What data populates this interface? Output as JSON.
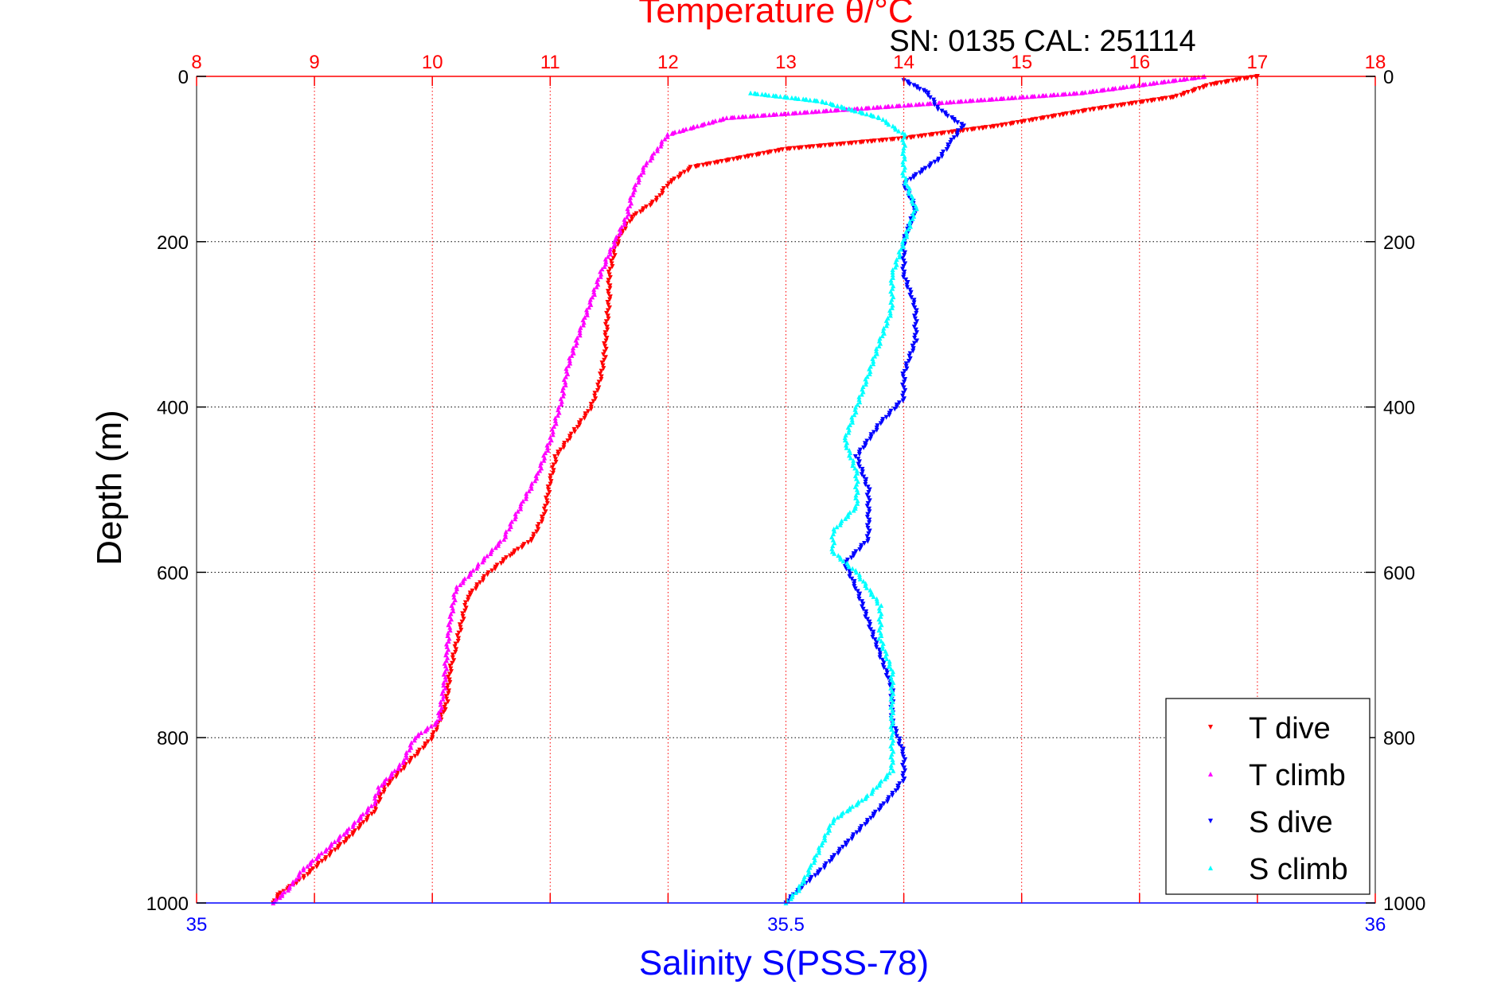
{
  "chart_data": {
    "type": "scatter",
    "title_top": "Temperature θ/°C",
    "subtitle": "SN: 0135  CAL: 251114",
    "xlabel_bottom": "Salinity S(PSS-78)",
    "ylabel": "Depth (m)",
    "x_top": {
      "range": [
        8,
        18
      ],
      "ticks": [
        "8",
        "9",
        "10",
        "11",
        "12",
        "13",
        "14",
        "15",
        "16",
        "17",
        "18"
      ],
      "color": "#ff0000"
    },
    "x_bottom": {
      "range": [
        35,
        36
      ],
      "ticks": [
        "35",
        "35.5",
        "36"
      ],
      "color": "#0000ff"
    },
    "y": {
      "range": [
        0,
        1000
      ],
      "inverted": true,
      "ticks": [
        "0",
        "200",
        "400",
        "600",
        "800",
        "1000"
      ]
    },
    "grid": true,
    "legend_position": "bottom-right",
    "series": [
      {
        "name": "T dive",
        "color": "#ff0000",
        "marker": "down-triangle",
        "axis": "top",
        "points": [
          [
            17.0,
            0
          ],
          [
            16.6,
            10
          ],
          [
            16.3,
            25
          ],
          [
            15.6,
            40
          ],
          [
            14.8,
            60
          ],
          [
            14.0,
            75
          ],
          [
            13.0,
            88
          ],
          [
            12.2,
            110
          ],
          [
            12.0,
            130
          ],
          [
            11.9,
            150
          ],
          [
            11.7,
            170
          ],
          [
            11.6,
            190
          ],
          [
            11.55,
            210
          ],
          [
            11.5,
            240
          ],
          [
            11.5,
            270
          ],
          [
            11.48,
            300
          ],
          [
            11.46,
            340
          ],
          [
            11.42,
            370
          ],
          [
            11.35,
            400
          ],
          [
            11.2,
            430
          ],
          [
            11.05,
            460
          ],
          [
            11.0,
            490
          ],
          [
            10.95,
            530
          ],
          [
            10.85,
            560
          ],
          [
            10.65,
            580
          ],
          [
            10.45,
            605
          ],
          [
            10.3,
            630
          ],
          [
            10.25,
            660
          ],
          [
            10.2,
            690
          ],
          [
            10.15,
            720
          ],
          [
            10.12,
            760
          ],
          [
            10.0,
            800
          ],
          [
            9.8,
            830
          ],
          [
            9.6,
            860
          ],
          [
            9.5,
            890
          ],
          [
            9.3,
            920
          ],
          [
            9.1,
            945
          ],
          [
            8.9,
            970
          ],
          [
            8.7,
            990
          ],
          [
            8.65,
            1000
          ]
        ]
      },
      {
        "name": "T climb",
        "color": "#ff00ff",
        "marker": "up-triangle",
        "axis": "top",
        "points": [
          [
            16.55,
            0
          ],
          [
            15.5,
            20
          ],
          [
            14.5,
            30
          ],
          [
            13.5,
            40
          ],
          [
            12.5,
            50
          ],
          [
            12.0,
            70
          ],
          [
            11.9,
            90
          ],
          [
            11.8,
            110
          ],
          [
            11.7,
            140
          ],
          [
            11.65,
            170
          ],
          [
            11.55,
            200
          ],
          [
            11.45,
            230
          ],
          [
            11.35,
            270
          ],
          [
            11.25,
            310
          ],
          [
            11.15,
            350
          ],
          [
            11.1,
            390
          ],
          [
            11.0,
            440
          ],
          [
            10.9,
            480
          ],
          [
            10.75,
            520
          ],
          [
            10.6,
            560
          ],
          [
            10.4,
            590
          ],
          [
            10.2,
            620
          ],
          [
            10.15,
            660
          ],
          [
            10.12,
            700
          ],
          [
            10.1,
            740
          ],
          [
            10.05,
            780
          ],
          [
            9.85,
            800
          ],
          [
            9.75,
            830
          ],
          [
            9.55,
            860
          ],
          [
            9.5,
            880
          ],
          [
            9.3,
            910
          ],
          [
            9.1,
            935
          ],
          [
            8.9,
            960
          ],
          [
            8.8,
            980
          ],
          [
            8.65,
            1000
          ]
        ]
      },
      {
        "name": "S dive",
        "color": "#0000ff",
        "marker": "down-triangle",
        "axis": "bottom",
        "points": [
          [
            35.6,
            5
          ],
          [
            35.62,
            20
          ],
          [
            35.63,
            40
          ],
          [
            35.65,
            60
          ],
          [
            35.64,
            80
          ],
          [
            35.63,
            100
          ],
          [
            35.6,
            130
          ],
          [
            35.61,
            160
          ],
          [
            35.6,
            200
          ],
          [
            35.6,
            240
          ],
          [
            35.61,
            280
          ],
          [
            35.61,
            320
          ],
          [
            35.6,
            360
          ],
          [
            35.6,
            390
          ],
          [
            35.58,
            420
          ],
          [
            35.56,
            460
          ],
          [
            35.57,
            500
          ],
          [
            35.57,
            530
          ],
          [
            35.57,
            560
          ],
          [
            35.55,
            590
          ],
          [
            35.56,
            620
          ],
          [
            35.57,
            660
          ],
          [
            35.58,
            700
          ],
          [
            35.59,
            740
          ],
          [
            35.59,
            780
          ],
          [
            35.6,
            820
          ],
          [
            35.6,
            850
          ],
          [
            35.59,
            870
          ],
          [
            35.57,
            900
          ],
          [
            35.55,
            930
          ],
          [
            35.53,
            960
          ],
          [
            35.51,
            985
          ],
          [
            35.5,
            1000
          ]
        ]
      },
      {
        "name": "S climb",
        "color": "#00ffff",
        "marker": "up-triangle",
        "axis": "bottom",
        "points": [
          [
            35.47,
            20
          ],
          [
            35.53,
            30
          ],
          [
            35.58,
            50
          ],
          [
            35.6,
            70
          ],
          [
            35.6,
            90
          ],
          [
            35.6,
            120
          ],
          [
            35.61,
            160
          ],
          [
            35.6,
            200
          ],
          [
            35.59,
            240
          ],
          [
            35.59,
            280
          ],
          [
            35.58,
            320
          ],
          [
            35.57,
            360
          ],
          [
            35.56,
            400
          ],
          [
            35.55,
            440
          ],
          [
            35.56,
            480
          ],
          [
            35.56,
            520
          ],
          [
            35.54,
            550
          ],
          [
            35.54,
            575
          ],
          [
            35.56,
            600
          ],
          [
            35.58,
            640
          ],
          [
            35.58,
            680
          ],
          [
            35.59,
            720
          ],
          [
            35.59,
            760
          ],
          [
            35.59,
            800
          ],
          [
            35.59,
            840
          ],
          [
            35.57,
            870
          ],
          [
            35.54,
            900
          ],
          [
            35.53,
            930
          ],
          [
            35.52,
            960
          ],
          [
            35.51,
            985
          ],
          [
            35.5,
            1000
          ]
        ]
      }
    ]
  }
}
